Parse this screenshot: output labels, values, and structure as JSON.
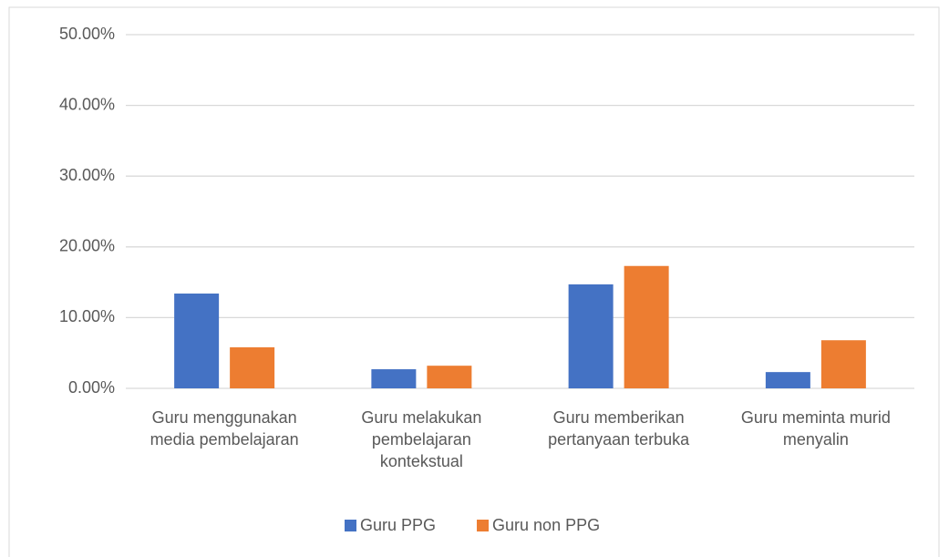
{
  "chart_data": {
    "type": "bar",
    "categories": [
      "Guru menggunakan media pembelajaran",
      "Guru melakukan pembelajaran kontekstual",
      "Guru memberikan pertanyaan terbuka",
      "Guru meminta murid menyalin"
    ],
    "series": [
      {
        "name": "Guru PPG",
        "color": "#4472c4",
        "values": [
          13.4,
          2.7,
          14.7,
          2.3
        ]
      },
      {
        "name": "Guru non PPG",
        "color": "#ed7d31",
        "values": [
          5.8,
          3.2,
          17.3,
          6.8
        ]
      }
    ],
    "ylim": [
      0,
      50
    ],
    "yticks": [
      {
        "value": 0,
        "label": "0.00%"
      },
      {
        "value": 10,
        "label": "10.00%"
      },
      {
        "value": 20,
        "label": "20.00%"
      },
      {
        "value": 30,
        "label": "30.00%"
      },
      {
        "value": 40,
        "label": "40.00%"
      },
      {
        "value": 50,
        "label": "50.00%"
      }
    ],
    "grid": true,
    "legend": "bottom"
  }
}
